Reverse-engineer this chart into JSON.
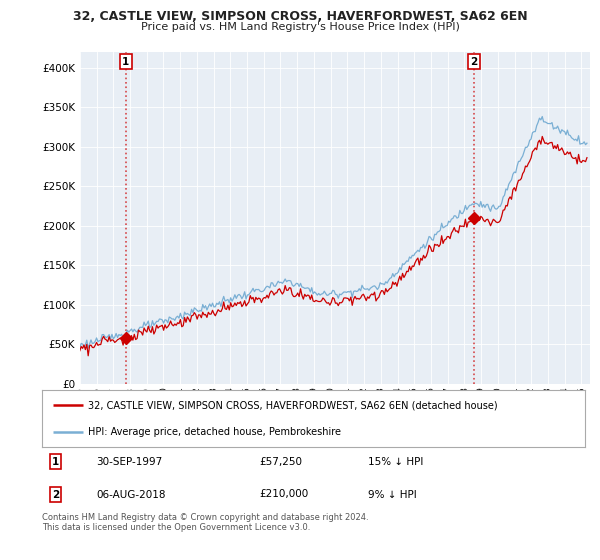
{
  "title1": "32, CASTLE VIEW, SIMPSON CROSS, HAVERFORDWEST, SA62 6EN",
  "title2": "Price paid vs. HM Land Registry's House Price Index (HPI)",
  "ylabel_ticks": [
    "£0",
    "£50K",
    "£100K",
    "£150K",
    "£200K",
    "£250K",
    "£300K",
    "£350K",
    "£400K"
  ],
  "ytick_values": [
    0,
    50000,
    100000,
    150000,
    200000,
    250000,
    300000,
    350000,
    400000
  ],
  "ylim": [
    0,
    420000
  ],
  "xlim_start": 1995.0,
  "xlim_end": 2025.5,
  "sale1_date": 1997.75,
  "sale1_price": 57250,
  "sale1_label": "1",
  "sale2_date": 2018.58,
  "sale2_price": 210000,
  "sale2_label": "2",
  "red_line_color": "#cc0000",
  "blue_line_color": "#7aafd4",
  "legend_label1": "32, CASTLE VIEW, SIMPSON CROSS, HAVERFORDWEST, SA62 6EN (detached house)",
  "legend_label2": "HPI: Average price, detached house, Pembrokeshire",
  "note1_label": "1",
  "note1_date": "30-SEP-1997",
  "note1_price": "£57,250",
  "note1_hpi": "15% ↓ HPI",
  "note2_label": "2",
  "note2_date": "06-AUG-2018",
  "note2_price": "£210,000",
  "note2_hpi": "9% ↓ HPI",
  "footer": "Contains HM Land Registry data © Crown copyright and database right 2024.\nThis data is licensed under the Open Government Licence v3.0.",
  "background_color": "#ffffff",
  "chart_bg_color": "#e8eef5",
  "grid_color": "#ffffff"
}
